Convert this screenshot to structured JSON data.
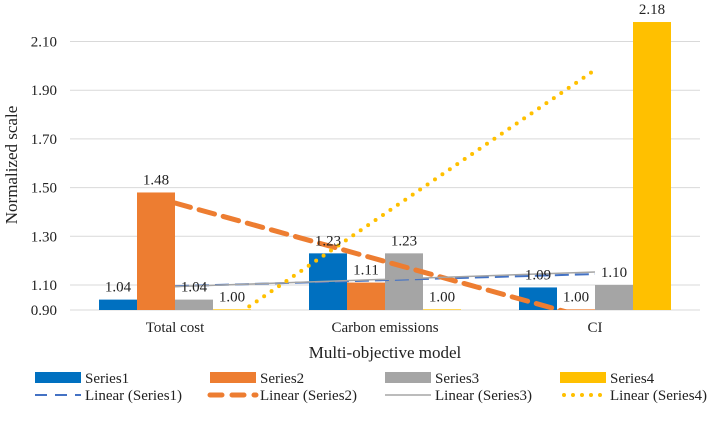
{
  "chart_data": {
    "type": "bar",
    "title": "",
    "xlabel": "Multi-objective model",
    "ylabel": "Normalized scale",
    "categories": [
      "Total cost",
      "Carbon emissions",
      "CI"
    ],
    "yticks": [
      "0.90",
      "1.10",
      "1.30",
      "1.50",
      "1.70",
      "1.90",
      "2.10"
    ],
    "ylim": [
      0.9,
      2.1
    ],
    "grid": true,
    "legend_position": "bottom",
    "series": [
      {
        "name": "Series1",
        "color": "#0070C0",
        "values": [
          1.04,
          1.23,
          1.09
        ],
        "labels": [
          "1.04",
          "1.23",
          "1.09"
        ]
      },
      {
        "name": "Series2",
        "color": "#ED7D31",
        "values": [
          1.48,
          1.11,
          1.0
        ],
        "labels": [
          "1.48",
          "1.11",
          "1.00"
        ]
      },
      {
        "name": "Series3",
        "color": "#A5A5A5",
        "values": [
          1.04,
          1.23,
          1.1
        ],
        "labels": [
          "1.04",
          "1.23",
          "1.10"
        ]
      },
      {
        "name": "Series4",
        "color": "#FFC000",
        "values": [
          1.0,
          1.0,
          2.18
        ],
        "labels": [
          "1.00",
          "1.00",
          "2.18"
        ]
      }
    ],
    "trendlines": [
      {
        "name": "Linear (Series1)",
        "series": 0,
        "type": "linear",
        "color": "#4472C4",
        "style": "dash"
      },
      {
        "name": "Linear (Series2)",
        "series": 1,
        "type": "linear",
        "color": "#ED7D31",
        "style": "thick-dash"
      },
      {
        "name": "Linear (Series3)",
        "series": 2,
        "type": "linear",
        "color": "#A5A5A5",
        "style": "solid"
      },
      {
        "name": "Linear (Series4)",
        "series": 3,
        "type": "linear",
        "color": "#FFC000",
        "style": "dot"
      }
    ]
  }
}
